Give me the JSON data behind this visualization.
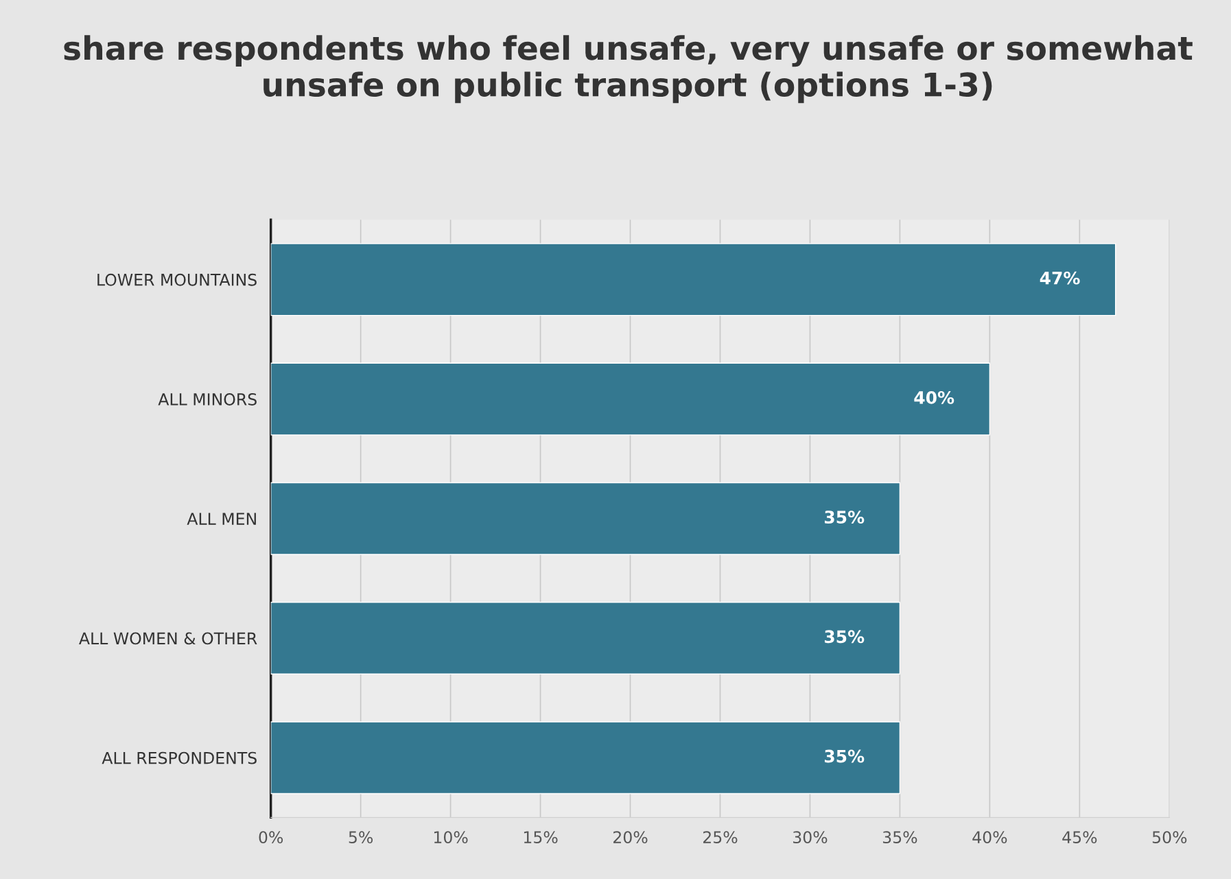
{
  "chart_data": {
    "type": "bar",
    "orientation": "horizontal",
    "title": "share respondents who feel unsafe, very unsafe or somewhat unsafe on public transport (options 1-3)",
    "categories": [
      "LOWER MOUNTAINS",
      "ALL MINORS",
      "ALL MEN",
      "ALL WOMEN & OTHER",
      "ALL RESPONDENTS"
    ],
    "values": [
      47,
      40,
      35,
      35,
      35
    ],
    "value_labels": [
      "47%",
      "40%",
      "35%",
      "35%",
      "35%"
    ],
    "color": "#347890",
    "xlim": [
      0,
      50
    ],
    "xticks": [
      {
        "value": 0,
        "label": "0%"
      },
      {
        "value": 5,
        "label": "5%"
      },
      {
        "value": 10,
        "label": "10%"
      },
      {
        "value": 15,
        "label": "15%"
      },
      {
        "value": 20,
        "label": "20%"
      },
      {
        "value": 25,
        "label": "25%"
      },
      {
        "value": 30,
        "label": "30%"
      },
      {
        "value": 35,
        "label": "35%"
      },
      {
        "value": 40,
        "label": "40%"
      },
      {
        "value": 45,
        "label": "45%"
      },
      {
        "value": 50,
        "label": "50%"
      }
    ],
    "grid": "x"
  }
}
